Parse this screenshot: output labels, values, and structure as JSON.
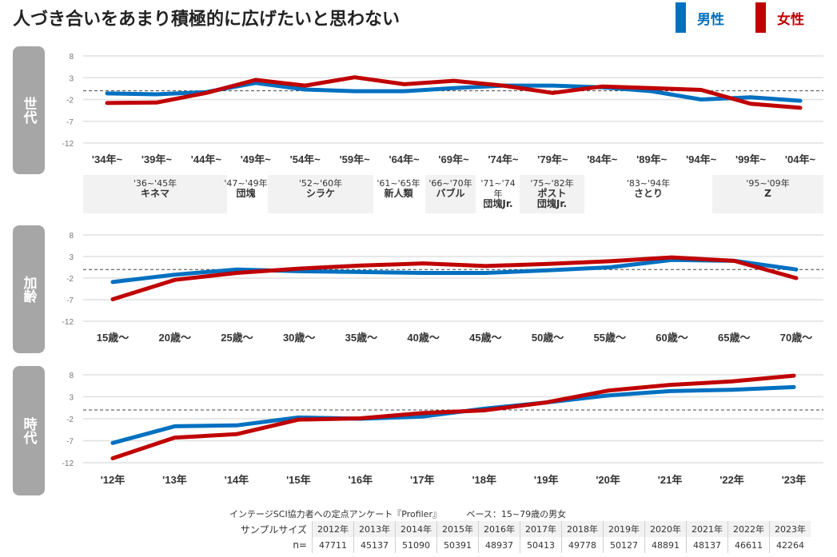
{
  "title": "人づき合いをあまり積極的に広げたいと思わない",
  "legend": [
    {
      "name": "男性",
      "color": "#0070c0"
    },
    {
      "name": "女性",
      "color": "#c00000"
    }
  ],
  "chart_data": [
    {
      "type": "line",
      "panel_label": "世代",
      "categories": [
        "'34年~",
        "'39年~",
        "'44年~",
        "'49年~",
        "'54年~",
        "'59年~",
        "'64年~",
        "'69年~",
        "'74年~",
        "'79年~",
        "'84年~",
        "'89年~",
        "'94年~",
        "'99年~",
        "'04年~"
      ],
      "ylim": [
        -12,
        8
      ],
      "yticks": [
        8,
        3,
        -2,
        -7,
        -12
      ],
      "reference_line": 0,
      "grid": true,
      "series": [
        {
          "name": "男性",
          "values": [
            -0.6,
            -0.8,
            -0.3,
            1.8,
            0.3,
            -0.1,
            -0.1,
            0.6,
            1.2,
            1.2,
            0.8,
            -0.1,
            -2.0,
            -1.5,
            -2.3
          ]
        },
        {
          "name": "女性",
          "values": [
            -2.8,
            -2.7,
            -0.5,
            2.5,
            1.2,
            3.1,
            1.5,
            2.3,
            1.2,
            -0.5,
            1.0,
            0.6,
            0.2,
            -3.0,
            -3.9
          ]
        }
      ],
      "generation_bands": [
        {
          "years": "'36~'45年",
          "name": "キネマ",
          "shaded": true
        },
        {
          "years": "'47~'49年",
          "name": "団塊",
          "shaded": false
        },
        {
          "years": "'52~'60年",
          "name": "シラケ",
          "shaded": true
        },
        {
          "years": "'61~'65年",
          "name": "新人類",
          "shaded": false
        },
        {
          "years": "'66~'70年",
          "name": "バブル",
          "shaded": true
        },
        {
          "years": "'71~'74年",
          "name": "団塊Jr.",
          "shaded": false
        },
        {
          "years": "'75~'82年",
          "name": "ポスト",
          "name2": "団塊Jr.",
          "shaded": true
        },
        {
          "years": "'83~'94年",
          "name": "さとり",
          "shaded": false
        },
        {
          "years": "'95~'09年",
          "name": "Z",
          "shaded": true
        }
      ]
    },
    {
      "type": "line",
      "panel_label": "加齢",
      "categories": [
        "15歳〜",
        "20歳〜",
        "25歳〜",
        "30歳〜",
        "35歳〜",
        "40歳〜",
        "45歳〜",
        "50歳〜",
        "55歳〜",
        "60歳〜",
        "65歳〜",
        "70歳〜"
      ],
      "ylim": [
        -12,
        8
      ],
      "yticks": [
        8,
        3,
        -2,
        -7,
        -12
      ],
      "reference_line": 0,
      "grid": true,
      "series": [
        {
          "name": "男性",
          "values": [
            -2.9,
            -1.2,
            0.0,
            -0.4,
            -0.6,
            -0.8,
            -0.8,
            -0.2,
            0.5,
            2.2,
            2.0,
            0.0
          ]
        },
        {
          "name": "女性",
          "values": [
            -6.9,
            -2.4,
            -0.8,
            0.2,
            0.9,
            1.4,
            0.8,
            1.3,
            1.9,
            2.8,
            2.0,
            -2.0
          ]
        }
      ]
    },
    {
      "type": "line",
      "panel_label": "時代",
      "categories": [
        "'12年",
        "'13年",
        "'14年",
        "'15年",
        "'16年",
        "'17年",
        "'18年",
        "'19年",
        "'20年",
        "'21年",
        "'22年",
        "'23年"
      ],
      "ylim": [
        -12,
        8
      ],
      "yticks": [
        8,
        3,
        -2,
        -7,
        -12
      ],
      "reference_line": 0,
      "grid": true,
      "series": [
        {
          "name": "男性",
          "values": [
            -7.5,
            -3.7,
            -3.5,
            -1.7,
            -2.0,
            -1.5,
            0.3,
            1.7,
            3.3,
            4.3,
            4.6,
            5.2
          ]
        },
        {
          "name": "女性",
          "values": [
            -11.0,
            -6.3,
            -5.5,
            -2.2,
            -1.9,
            -0.7,
            -0.1,
            1.7,
            4.4,
            5.7,
            6.5,
            7.8
          ]
        }
      ]
    }
  ],
  "footer": {
    "source": "インテージSCI協力者への定点アンケート『Profiler』",
    "base": "ベース：15~79歳の男女",
    "sample_label": "サンプルサイズ",
    "n_label": "n=",
    "years": [
      "2012年",
      "2013年",
      "2014年",
      "2015年",
      "2016年",
      "2017年",
      "2018年",
      "2019年",
      "2020年",
      "2021年",
      "2022年",
      "2023年"
    ],
    "n": [
      "47711",
      "45137",
      "51090",
      "50391",
      "48937",
      "50413",
      "49778",
      "50127",
      "48891",
      "48137",
      "46611",
      "42264"
    ]
  }
}
